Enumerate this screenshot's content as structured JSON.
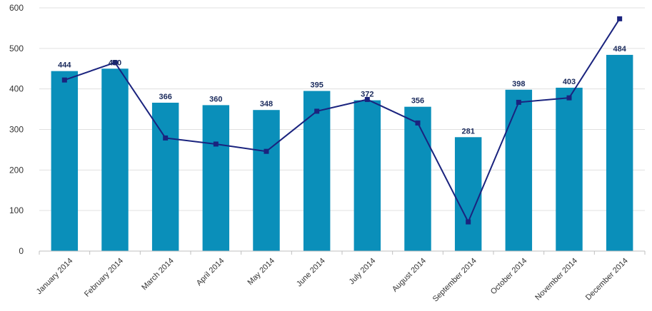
{
  "chart_data": {
    "type": "bar",
    "categories": [
      "January 2014",
      "February 2014",
      "March 2014",
      "April 2014",
      "May 2014",
      "June 2014",
      "July 2014",
      "August 2014",
      "September 2014",
      "October 2014",
      "November 2014",
      "December 2014"
    ],
    "series": [
      {
        "type": "bar",
        "values": [
          444,
          450,
          366,
          360,
          348,
          395,
          372,
          356,
          281,
          398,
          403,
          484
        ],
        "color": "#0a8fba"
      },
      {
        "type": "line",
        "values": [
          422,
          465,
          279,
          264,
          246,
          345,
          374,
          316,
          72,
          367,
          378,
          573
        ],
        "color": "#1a237e",
        "marker": "square"
      }
    ],
    "ylim": [
      0,
      600
    ],
    "yticks": [
      0,
      100,
      200,
      300,
      400,
      500,
      600
    ],
    "grid": true,
    "show_data_labels": true
  }
}
